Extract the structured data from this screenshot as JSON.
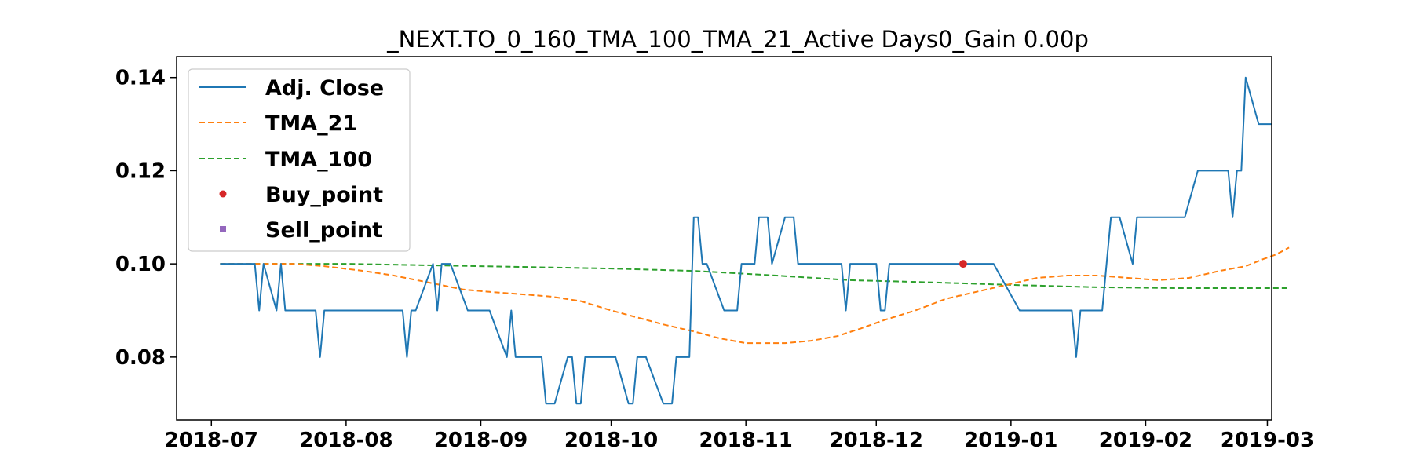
{
  "chart_data": {
    "type": "line",
    "title": "_NEXT.TO_0_160_TMA_100_TMA_21_Active Days0_Gain   0.00p",
    "xlabel": "",
    "ylabel": "",
    "x_range": [
      "2018-06-23",
      "2019-03-02"
    ],
    "ylim": [
      0.0665,
      0.1445
    ],
    "grid": false,
    "legend_position": "top-left",
    "x_ticks": [
      "2018-07",
      "2018-08",
      "2018-09",
      "2018-10",
      "2018-11",
      "2018-12",
      "2019-01",
      "2019-02",
      "2019-03"
    ],
    "y_ticks": [
      "0.08",
      "0.10",
      "0.12",
      "0.14"
    ],
    "series": [
      {
        "name": "Adj. Close",
        "style": "solid",
        "color": "#1f77b4",
        "points": [
          [
            "2018-07-03",
            0.1
          ],
          [
            "2018-07-11",
            0.1
          ],
          [
            "2018-07-12",
            0.09
          ],
          [
            "2018-07-13",
            0.1
          ],
          [
            "2018-07-16",
            0.09
          ],
          [
            "2018-07-17",
            0.1
          ],
          [
            "2018-07-18",
            0.09
          ],
          [
            "2018-07-25",
            0.09
          ],
          [
            "2018-07-26",
            0.08
          ],
          [
            "2018-07-27",
            0.09
          ],
          [
            "2018-08-14",
            0.09
          ],
          [
            "2018-08-15",
            0.08
          ],
          [
            "2018-08-16",
            0.09
          ],
          [
            "2018-08-17",
            0.09
          ],
          [
            "2018-08-21",
            0.1
          ],
          [
            "2018-08-22",
            0.09
          ],
          [
            "2018-08-23",
            0.1
          ],
          [
            "2018-08-25",
            0.1
          ],
          [
            "2018-08-29",
            0.09
          ],
          [
            "2018-09-03",
            0.09
          ],
          [
            "2018-09-07",
            0.08
          ],
          [
            "2018-09-08",
            0.09
          ],
          [
            "2018-09-09",
            0.08
          ],
          [
            "2018-09-15",
            0.08
          ],
          [
            "2018-09-16",
            0.07
          ],
          [
            "2018-09-18",
            0.07
          ],
          [
            "2018-09-21",
            0.08
          ],
          [
            "2018-09-22",
            0.08
          ],
          [
            "2018-09-23",
            0.07
          ],
          [
            "2018-09-24",
            0.07
          ],
          [
            "2018-09-25",
            0.08
          ],
          [
            "2018-10-02",
            0.08
          ],
          [
            "2018-10-05",
            0.07
          ],
          [
            "2018-10-06",
            0.07
          ],
          [
            "2018-10-07",
            0.08
          ],
          [
            "2018-10-09",
            0.08
          ],
          [
            "2018-10-13",
            0.07
          ],
          [
            "2018-10-15",
            0.07
          ],
          [
            "2018-10-16",
            0.08
          ],
          [
            "2018-10-19",
            0.08
          ],
          [
            "2018-10-20",
            0.11
          ],
          [
            "2018-10-21",
            0.11
          ],
          [
            "2018-10-22",
            0.1
          ],
          [
            "2018-10-23",
            0.1
          ],
          [
            "2018-10-27",
            0.09
          ],
          [
            "2018-10-30",
            0.09
          ],
          [
            "2018-10-31",
            0.1
          ],
          [
            "2018-11-03",
            0.1
          ],
          [
            "2018-11-04",
            0.11
          ],
          [
            "2018-11-06",
            0.11
          ],
          [
            "2018-11-07",
            0.1
          ],
          [
            "2018-11-10",
            0.11
          ],
          [
            "2018-11-12",
            0.11
          ],
          [
            "2018-11-13",
            0.1
          ],
          [
            "2018-11-23",
            0.1
          ],
          [
            "2018-11-24",
            0.09
          ],
          [
            "2018-11-25",
            0.1
          ],
          [
            "2018-12-01",
            0.1
          ],
          [
            "2018-12-02",
            0.09
          ],
          [
            "2018-12-03",
            0.09
          ],
          [
            "2018-12-04",
            0.1
          ],
          [
            "2018-12-28",
            0.1
          ],
          [
            "2019-01-03",
            0.09
          ],
          [
            "2019-01-15",
            0.09
          ],
          [
            "2019-01-16",
            0.08
          ],
          [
            "2019-01-17",
            0.09
          ],
          [
            "2019-01-20",
            0.09
          ],
          [
            "2019-01-22",
            0.09
          ],
          [
            "2019-01-24",
            0.11
          ],
          [
            "2019-01-26",
            0.11
          ],
          [
            "2019-01-29",
            0.1
          ],
          [
            "2019-01-30",
            0.11
          ],
          [
            "2019-02-10",
            0.11
          ],
          [
            "2019-02-13",
            0.12
          ],
          [
            "2019-02-20",
            0.12
          ],
          [
            "2019-02-21",
            0.11
          ],
          [
            "2019-02-22",
            0.12
          ],
          [
            "2019-02-23",
            0.12
          ],
          [
            "2019-02-24",
            0.14
          ],
          [
            "2019-02-27",
            0.13
          ],
          [
            "2019-03-02",
            0.13
          ]
        ]
      },
      {
        "name": "TMA_21",
        "style": "dashed",
        "color": "#ff7f0e",
        "points": [
          [
            "2018-07-03",
            0.1
          ],
          [
            "2018-07-20",
            0.1
          ],
          [
            "2018-07-27",
            0.0995
          ],
          [
            "2018-08-05",
            0.0985
          ],
          [
            "2018-08-12",
            0.0975
          ],
          [
            "2018-08-20",
            0.096
          ],
          [
            "2018-08-28",
            0.0945
          ],
          [
            "2018-09-03",
            0.094
          ],
          [
            "2018-09-10",
            0.0935
          ],
          [
            "2018-09-17",
            0.093
          ],
          [
            "2018-09-24",
            0.092
          ],
          [
            "2018-10-01",
            0.09
          ],
          [
            "2018-10-07",
            0.0885
          ],
          [
            "2018-10-13",
            0.087
          ],
          [
            "2018-10-20",
            0.0855
          ],
          [
            "2018-10-26",
            0.084
          ],
          [
            "2018-11-01",
            0.083
          ],
          [
            "2018-11-10",
            0.083
          ],
          [
            "2018-11-16",
            0.0835
          ],
          [
            "2018-11-22",
            0.0845
          ],
          [
            "2018-11-27",
            0.086
          ],
          [
            "2018-12-03",
            0.088
          ],
          [
            "2018-12-10",
            0.09
          ],
          [
            "2018-12-17",
            0.0925
          ],
          [
            "2018-12-24",
            0.094
          ],
          [
            "2018-12-31",
            0.0955
          ],
          [
            "2019-01-07",
            0.097
          ],
          [
            "2019-01-14",
            0.0975
          ],
          [
            "2019-01-21",
            0.0975
          ],
          [
            "2019-01-28",
            0.097
          ],
          [
            "2019-02-04",
            0.0965
          ],
          [
            "2019-02-11",
            0.097
          ],
          [
            "2019-02-18",
            0.0985
          ],
          [
            "2019-02-24",
            0.0995
          ],
          [
            "2019-02-28",
            0.101
          ],
          [
            "2019-03-03",
            0.102
          ],
          [
            "2019-03-06",
            0.1035
          ]
        ]
      },
      {
        "name": "TMA_100",
        "style": "dashed",
        "color": "#2ca02c",
        "points": [
          [
            "2018-07-03",
            0.1
          ],
          [
            "2018-08-01",
            0.1
          ],
          [
            "2018-09-01",
            0.0995
          ],
          [
            "2018-10-01",
            0.099
          ],
          [
            "2018-10-20",
            0.0985
          ],
          [
            "2018-11-08",
            0.0975
          ],
          [
            "2018-11-25",
            0.0965
          ],
          [
            "2018-12-15",
            0.096
          ],
          [
            "2019-01-01",
            0.0955
          ],
          [
            "2019-01-20",
            0.095
          ],
          [
            "2019-02-08",
            0.0948
          ],
          [
            "2019-03-06",
            0.0948
          ]
        ]
      },
      {
        "name": "Buy_point",
        "style": "marker-circle",
        "color": "#d62728",
        "points": [
          [
            "2018-12-21",
            0.1
          ]
        ]
      },
      {
        "name": "Sell_point",
        "style": "marker-square",
        "color": "#9467bd",
        "points": []
      }
    ]
  }
}
